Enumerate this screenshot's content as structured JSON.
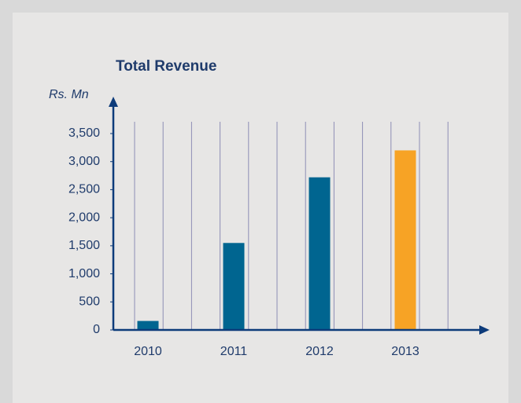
{
  "chart_data": {
    "type": "bar",
    "title": "Total Revenue",
    "y_label": "Rs. Mn",
    "categories": [
      "2010",
      "2011",
      "2012",
      "2013"
    ],
    "values": [
      160,
      1550,
      2720,
      3200
    ],
    "colors": [
      "#006590",
      "#006590",
      "#006590",
      "#f7a325"
    ],
    "ylim": [
      0,
      3500
    ],
    "yticks": [
      0,
      500,
      {
        "value": 1000,
        "label": "1,000"
      },
      {
        "value": 1500,
        "label": "1,500"
      },
      {
        "value": 2000,
        "label": "2,000"
      },
      {
        "value": 2500,
        "label": "2,500"
      },
      {
        "value": 3000,
        "label": "3,000"
      },
      {
        "value": 3500,
        "label": "3,500"
      }
    ],
    "grid": true
  }
}
